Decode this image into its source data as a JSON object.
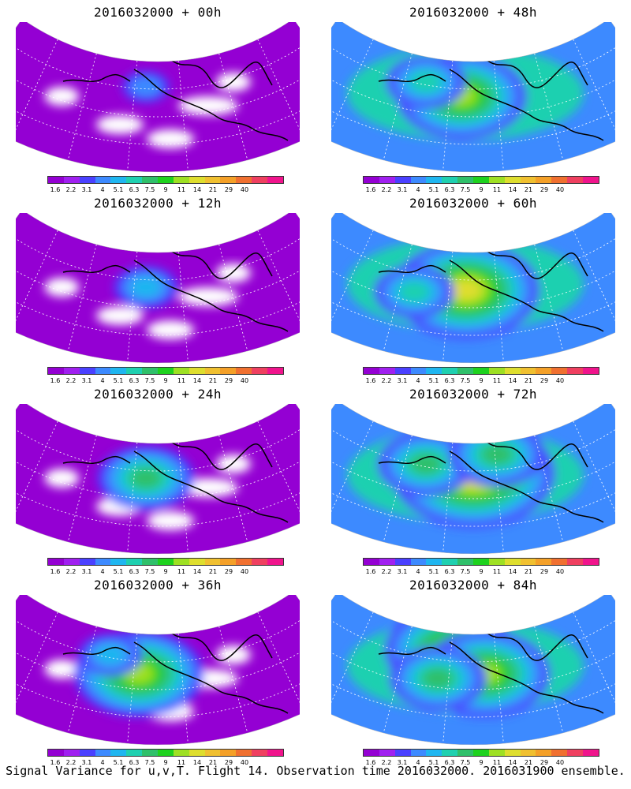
{
  "caption": "Signal Variance for u,v,T. Flight 14. Observation time 2016032000. 2016031900 ensemble.",
  "colorbar": {
    "labels": [
      "1.6",
      "2.2",
      "3.1",
      "4",
      "5.1",
      "6.3",
      "7.5",
      "9",
      "11",
      "14",
      "21",
      "29",
      "40"
    ],
    "colors": [
      "#9400d3",
      "#a020f0",
      "#4a40ff",
      "#3d8aff",
      "#1fb6f0",
      "#1fd0b0",
      "#2fc06a",
      "#1ed21e",
      "#9ee023",
      "#dede2e",
      "#f0c030",
      "#f4a028",
      "#f07030",
      "#ef4060",
      "#f0148c"
    ]
  },
  "panels": [
    {
      "title": "2016032000 + 00h",
      "level": 0.15,
      "hot": [
        [
          0.45,
          0.35,
          0.15
        ]
      ]
    },
    {
      "title": "2016032000 + 48h",
      "level": 0.65,
      "hot": [
        [
          0.45,
          0.45,
          0.6
        ],
        [
          0.3,
          0.3,
          0.3
        ]
      ]
    },
    {
      "title": "2016032000 + 12h",
      "level": 0.2,
      "hot": [
        [
          0.45,
          0.45,
          0.25
        ]
      ]
    },
    {
      "title": "2016032000 + 60h",
      "level": 0.6,
      "hot": [
        [
          0.47,
          0.48,
          0.7
        ],
        [
          0.25,
          0.5,
          0.35
        ]
      ]
    },
    {
      "title": "2016032000 + 24h",
      "level": 0.35,
      "hot": [
        [
          0.45,
          0.45,
          0.4
        ]
      ]
    },
    {
      "title": "2016032000 + 72h",
      "level": 0.7,
      "hot": [
        [
          0.5,
          0.4,
          0.75
        ],
        [
          0.3,
          0.3,
          0.4
        ],
        [
          0.6,
          0.2,
          0.4
        ]
      ]
    },
    {
      "title": "2016032000 + 36h",
      "level": 0.4,
      "hot": [
        [
          0.42,
          0.5,
          0.55
        ],
        [
          0.3,
          0.3,
          0.25
        ]
      ]
    },
    {
      "title": "2016032000 + 84h",
      "level": 0.75,
      "hot": [
        [
          0.4,
          0.25,
          0.6
        ],
        [
          0.55,
          0.5,
          0.55
        ],
        [
          0.35,
          0.55,
          0.4
        ]
      ]
    }
  ]
}
